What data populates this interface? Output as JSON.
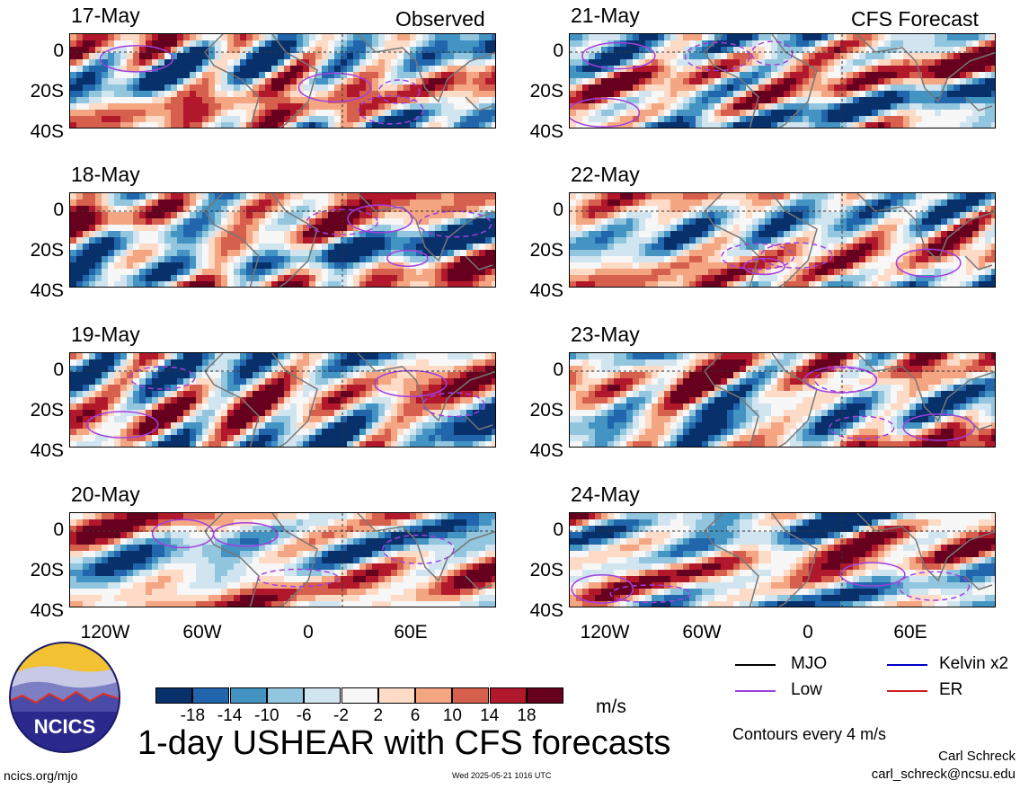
{
  "headers": {
    "left": "Observed",
    "right": "CFS Forecast"
  },
  "panels_left": [
    "17-May",
    "18-May",
    "19-May",
    "20-May"
  ],
  "panels_right": [
    "21-May",
    "22-May",
    "23-May",
    "24-May"
  ],
  "chart_data": {
    "type": "heatmap",
    "variable": "USHEAR",
    "units": "m/s",
    "y_tick_labels": [
      "0",
      "20S",
      "40S"
    ],
    "x_tick_labels": [
      "120W",
      "60W",
      "0",
      "60E"
    ],
    "colorbar": {
      "ticks": [
        "-18",
        "-14",
        "-10",
        "-6",
        "-2",
        "2",
        "6",
        "10",
        "14",
        "18"
      ],
      "colors": [
        "#08306b",
        "#2166ac",
        "#4393c3",
        "#92c5de",
        "#d1e5f0",
        "#f7f7f7",
        "#fddbc7",
        "#f4a582",
        "#d6604d",
        "#b2182b",
        "#67001f"
      ]
    }
  },
  "colorbar_units": "m/s",
  "title": "1-day USHEAR with CFS forecasts",
  "legend": {
    "mjo": "MJO",
    "kelvin": "Kelvin x2",
    "low": "Low",
    "er": "ER",
    "colors": {
      "mjo": "#000000",
      "kelvin": "#0000cc",
      "low": "#a040e0",
      "er": "#cc2020"
    }
  },
  "contour_note": "Contours every 4 m/s",
  "author": "Carl Schreck",
  "email": "carl_schreck@ncsu.edu",
  "website": "ncics.org/mjo",
  "timestamp": "Wed 2025-05-21 1016 UTC",
  "logo": {
    "text": "NCICS"
  }
}
